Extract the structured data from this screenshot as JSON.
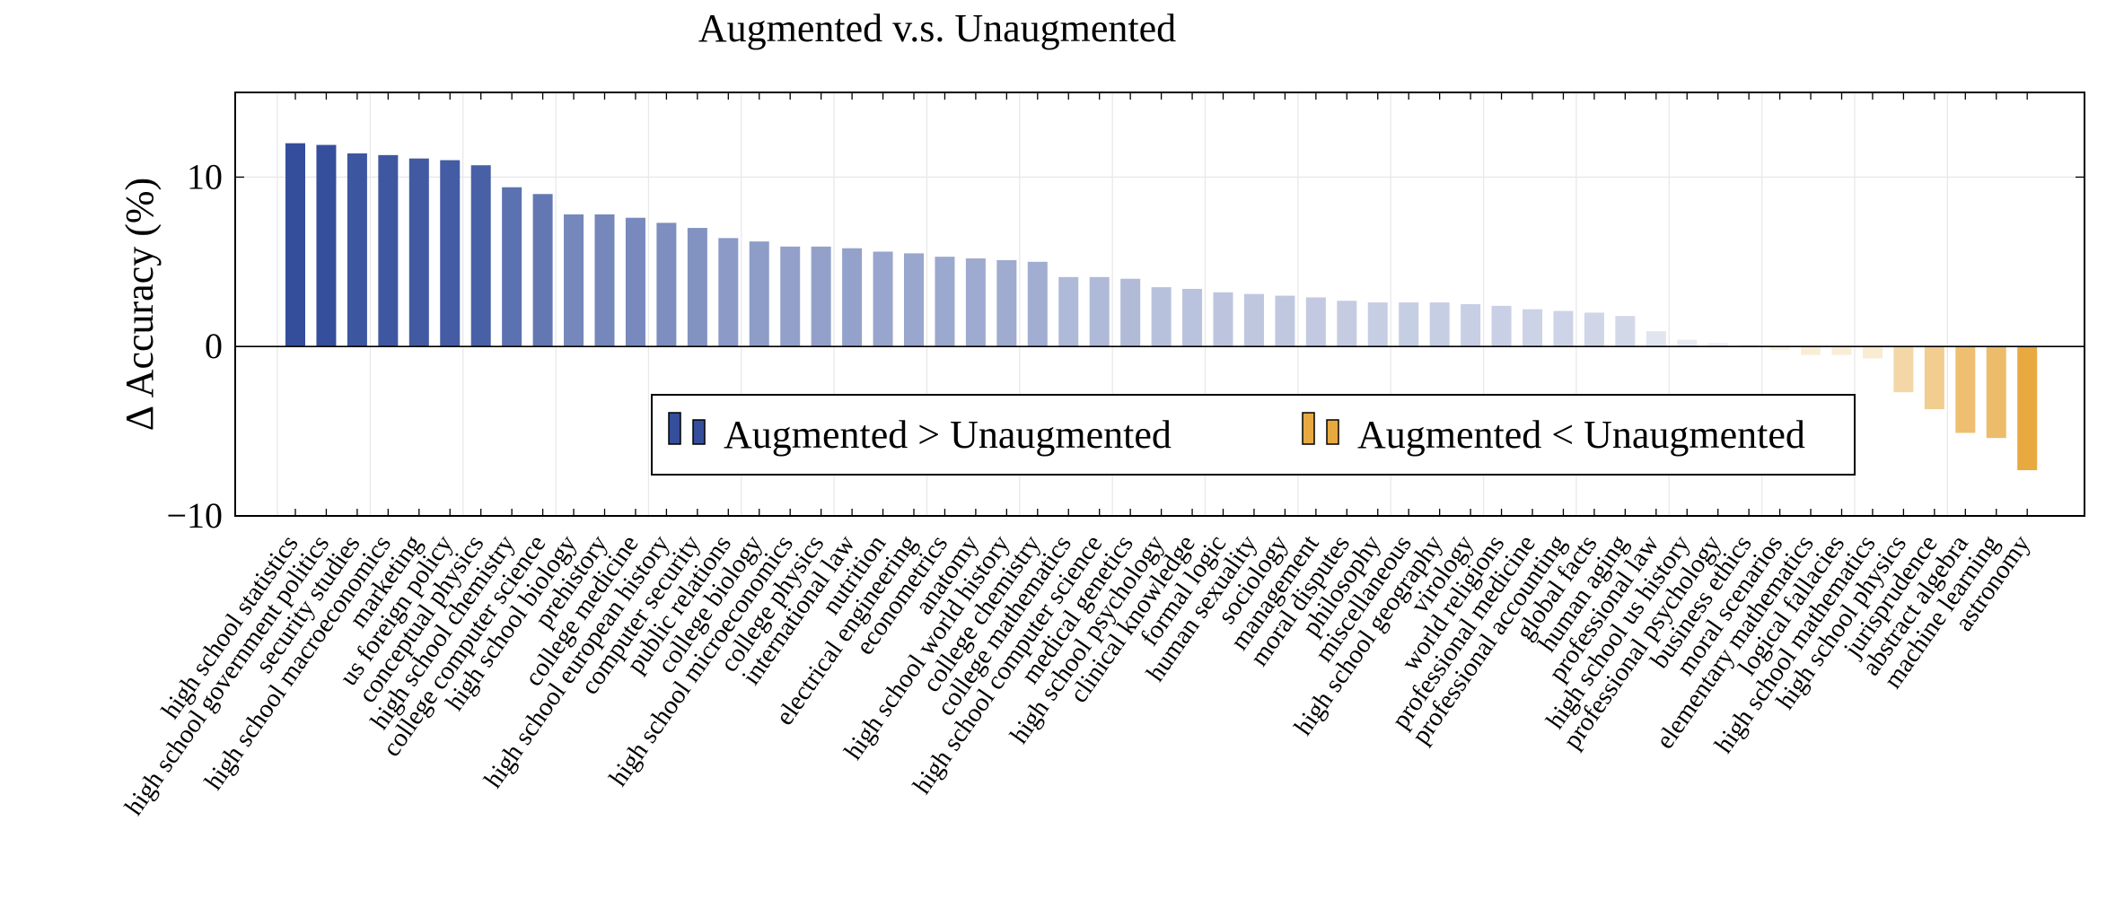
{
  "chart_data": {
    "type": "bar",
    "title": "Augmented v.s. Unaugmented",
    "xlabel": "",
    "ylabel": "Δ Accuracy (%)",
    "ylim": [
      -10,
      15
    ],
    "yticks": [
      -10,
      0,
      10
    ],
    "ytick_labels": [
      "−10",
      "0",
      "10"
    ],
    "grid": true,
    "categories": [
      "high school statistics",
      "high school government politics",
      "security studies",
      "high school macroeconomics",
      "marketing",
      "us foreign policy",
      "conceptual physics",
      "high school chemistry",
      "college computer science",
      "high school biology",
      "prehistory",
      "college medicine",
      "high school european history",
      "computer security",
      "public relations",
      "college biology",
      "high school microeconomics",
      "college physics",
      "international law",
      "nutrition",
      "electrical engineering",
      "econometrics",
      "anatomy",
      "high school world history",
      "college chemistry",
      "college mathematics",
      "high school computer science",
      "medical genetics",
      "high school psychology",
      "clinical knowledge",
      "formal logic",
      "human sexuality",
      "sociology",
      "management",
      "moral disputes",
      "philosophy",
      "miscellaneous",
      "high school geography",
      "virology",
      "world religions",
      "professional medicine",
      "professional accounting",
      "global facts",
      "human aging",
      "professional law",
      "high school us history",
      "professional psychology",
      "business ethics",
      "moral scenarios",
      "elementary mathematics",
      "logical fallacies",
      "high school mathematics",
      "high school physics",
      "jurisprudence",
      "abstract algebra",
      "machine learning",
      "astronomy"
    ],
    "values": [
      12.0,
      11.9,
      11.4,
      11.3,
      11.1,
      11.0,
      10.7,
      9.4,
      9.0,
      7.8,
      7.8,
      7.6,
      7.3,
      7.0,
      6.4,
      6.2,
      5.9,
      5.9,
      5.8,
      5.6,
      5.5,
      5.3,
      5.2,
      5.1,
      5.0,
      4.1,
      4.1,
      4.0,
      3.5,
      3.4,
      3.2,
      3.1,
      3.0,
      2.9,
      2.7,
      2.6,
      2.6,
      2.6,
      2.5,
      2.4,
      2.2,
      2.1,
      2.0,
      1.8,
      0.9,
      0.4,
      0.2,
      0.1,
      -0.2,
      -0.5,
      -0.5,
      -0.7,
      -2.7,
      -3.7,
      -5.1,
      -5.4,
      -7.3
    ],
    "legend": {
      "position": "lower-center",
      "entries": [
        {
          "label": "Augmented > Unaugmented",
          "color": "#344e9b"
        },
        {
          "label": "Augmented < Unaugmented",
          "color": "#e8a940"
        }
      ]
    },
    "colors": {
      "positive": "#344e9b",
      "negative": "#e8a940"
    }
  }
}
